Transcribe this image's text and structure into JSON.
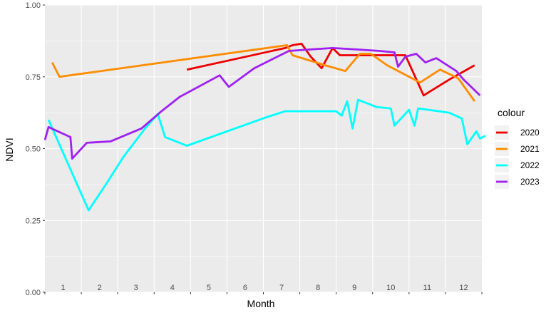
{
  "chart_data": {
    "type": "line",
    "xlabel": "Month",
    "ylabel": "NDVI",
    "xlim": [
      0.5,
      12.5
    ],
    "ylim": [
      0,
      1
    ],
    "y_ticks": [
      0,
      0.25,
      0.5,
      0.75,
      1
    ],
    "y_tick_labels": [
      "0.00",
      "0.25",
      "0.50",
      "0.75",
      "1.00"
    ],
    "x_tick_labels": [
      "1",
      "2",
      "3",
      "4",
      "5",
      "6",
      "7",
      "8",
      "9",
      "10",
      "11",
      "12"
    ],
    "grid": true,
    "legend": {
      "title": "colour",
      "position": "right"
    },
    "series": [
      {
        "name": "2020",
        "color": "#ee0000",
        "points": [
          [
            4.4,
            0.775
          ],
          [
            7.1,
            0.85
          ],
          [
            7.3,
            0.86
          ],
          [
            7.55,
            0.865
          ],
          [
            7.8,
            0.82
          ],
          [
            8.1,
            0.78
          ],
          [
            8.4,
            0.85
          ],
          [
            8.6,
            0.825
          ],
          [
            9.5,
            0.825
          ],
          [
            10.1,
            0.825
          ],
          [
            10.4,
            0.825
          ],
          [
            10.9,
            0.685
          ],
          [
            11.6,
            0.74
          ],
          [
            12.3,
            0.79
          ]
        ]
      },
      {
        "name": "2021",
        "color": "#ff8c00",
        "points": [
          [
            0.7,
            0.8
          ],
          [
            0.9,
            0.75
          ],
          [
            7.15,
            0.86
          ],
          [
            7.3,
            0.825
          ],
          [
            8.2,
            0.79
          ],
          [
            8.75,
            0.77
          ],
          [
            9.15,
            0.83
          ],
          [
            9.45,
            0.83
          ],
          [
            9.9,
            0.79
          ],
          [
            10.8,
            0.73
          ],
          [
            11.35,
            0.775
          ],
          [
            11.85,
            0.745
          ],
          [
            12.3,
            0.665
          ]
        ]
      },
      {
        "name": "2022",
        "color": "#00ffff",
        "points": [
          [
            0.6,
            0.6
          ],
          [
            1.7,
            0.285
          ],
          [
            2.2,
            0.38
          ],
          [
            2.65,
            0.47
          ],
          [
            3.25,
            0.57
          ],
          [
            3.6,
            0.62
          ],
          [
            3.8,
            0.54
          ],
          [
            4.4,
            0.51
          ],
          [
            6.6,
            0.61
          ],
          [
            7.1,
            0.63
          ],
          [
            8.0,
            0.63
          ],
          [
            8.5,
            0.63
          ],
          [
            8.65,
            0.615
          ],
          [
            8.8,
            0.665
          ],
          [
            8.95,
            0.57
          ],
          [
            9.1,
            0.67
          ],
          [
            9.3,
            0.66
          ],
          [
            9.6,
            0.645
          ],
          [
            10.0,
            0.64
          ],
          [
            10.1,
            0.58
          ],
          [
            10.5,
            0.635
          ],
          [
            10.65,
            0.58
          ],
          [
            10.75,
            0.64
          ],
          [
            11.6,
            0.625
          ],
          [
            11.95,
            0.605
          ],
          [
            12.1,
            0.515
          ],
          [
            12.35,
            0.56
          ],
          [
            12.45,
            0.535
          ],
          [
            12.6,
            0.545
          ]
        ]
      },
      {
        "name": "2023",
        "color": "#a020f0",
        "points": [
          [
            0.5,
            0.53
          ],
          [
            0.6,
            0.575
          ],
          [
            1.2,
            0.54
          ],
          [
            1.25,
            0.465
          ],
          [
            1.65,
            0.52
          ],
          [
            2.3,
            0.525
          ],
          [
            3.15,
            0.57
          ],
          [
            3.7,
            0.63
          ],
          [
            4.2,
            0.68
          ],
          [
            5.3,
            0.755
          ],
          [
            5.55,
            0.715
          ],
          [
            6.25,
            0.78
          ],
          [
            7.2,
            0.84
          ],
          [
            7.75,
            0.845
          ],
          [
            8.4,
            0.85
          ],
          [
            9.1,
            0.845
          ],
          [
            9.7,
            0.84
          ],
          [
            10.1,
            0.835
          ],
          [
            10.2,
            0.785
          ],
          [
            10.4,
            0.82
          ],
          [
            10.7,
            0.83
          ],
          [
            10.95,
            0.8
          ],
          [
            11.25,
            0.815
          ],
          [
            11.8,
            0.77
          ],
          [
            12.0,
            0.74
          ],
          [
            12.45,
            0.685
          ]
        ]
      }
    ]
  }
}
